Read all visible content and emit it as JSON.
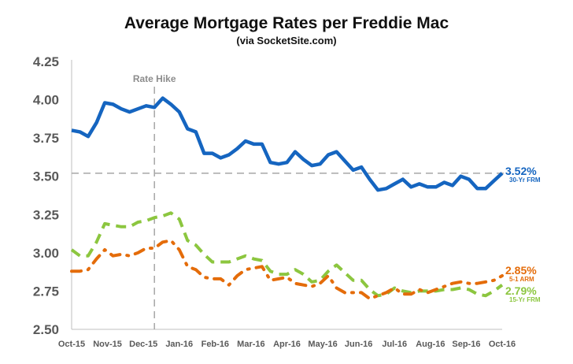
{
  "chart_data": {
    "type": "line",
    "title": "Average Mortgage Rates per Freddie Mac",
    "subtitle": "(via SocketSite.com)",
    "ylim": [
      2.5,
      4.25
    ],
    "yticks": [
      "2.50",
      "2.75",
      "3.00",
      "3.25",
      "3.50",
      "3.75",
      "4.00",
      "4.25"
    ],
    "xticks": [
      "Oct-15",
      "Nov-15",
      "Dec-15",
      "Jan-16",
      "Feb-16",
      "Mar-16",
      "Apr-16",
      "May-16",
      "Jun-16",
      "Jul-16",
      "Aug-16",
      "Sep-16",
      "Oct-16"
    ],
    "grid": false,
    "annotations": {
      "rate_hike": {
        "label": "Rate Hike",
        "x": 10
      },
      "reference_line": {
        "y": 3.52
      }
    },
    "series": [
      {
        "name": "30-Yr FRM",
        "end_label": "3.52%",
        "sublabel": "30-Yr FRM",
        "color": "#1565C0",
        "style": "solid",
        "values": [
          3.8,
          3.79,
          3.76,
          3.85,
          3.98,
          3.97,
          3.94,
          3.92,
          3.94,
          3.96,
          3.95,
          4.01,
          3.97,
          3.92,
          3.81,
          3.79,
          3.65,
          3.65,
          3.62,
          3.64,
          3.68,
          3.73,
          3.71,
          3.71,
          3.59,
          3.58,
          3.59,
          3.66,
          3.61,
          3.57,
          3.58,
          3.64,
          3.66,
          3.6,
          3.54,
          3.56,
          3.48,
          3.41,
          3.42,
          3.45,
          3.48,
          3.43,
          3.45,
          3.43,
          3.43,
          3.46,
          3.44,
          3.5,
          3.48,
          3.42,
          3.42,
          3.47,
          3.52
        ]
      },
      {
        "name": "15-Yr FRM",
        "end_label": "2.79%",
        "sublabel": "15-Yr FRM",
        "color": "#8CC63F",
        "style": "dashed",
        "values": [
          3.02,
          2.98,
          2.98,
          3.07,
          3.19,
          3.18,
          3.17,
          3.17,
          3.2,
          3.21,
          3.23,
          3.24,
          3.26,
          3.22,
          3.08,
          3.05,
          2.99,
          2.94,
          2.94,
          2.94,
          2.96,
          2.98,
          2.96,
          2.95,
          2.88,
          2.86,
          2.86,
          2.89,
          2.86,
          2.81,
          2.82,
          2.88,
          2.92,
          2.87,
          2.82,
          2.82,
          2.76,
          2.72,
          2.73,
          2.77,
          2.75,
          2.74,
          2.75,
          2.75,
          2.75,
          2.76,
          2.76,
          2.77,
          2.76,
          2.73,
          2.72,
          2.75,
          2.79
        ]
      },
      {
        "name": "5-1 ARM",
        "end_label": "2.85%",
        "sublabel": "5-1 ARM",
        "color": "#E46C0A",
        "style": "dashdot",
        "values": [
          2.88,
          2.88,
          2.89,
          2.96,
          3.02,
          2.98,
          2.99,
          2.98,
          3.0,
          3.03,
          3.03,
          3.07,
          3.08,
          3.02,
          2.91,
          2.89,
          2.84,
          2.83,
          2.83,
          2.79,
          2.85,
          2.89,
          2.9,
          2.91,
          2.82,
          2.83,
          2.84,
          2.8,
          2.79,
          2.78,
          2.8,
          2.85,
          2.77,
          2.74,
          2.74,
          2.74,
          2.7,
          2.72,
          2.74,
          2.77,
          2.73,
          2.73,
          2.76,
          2.74,
          2.76,
          2.78,
          2.8,
          2.81,
          2.8,
          2.8,
          2.81,
          2.82,
          2.85
        ]
      }
    ]
  }
}
